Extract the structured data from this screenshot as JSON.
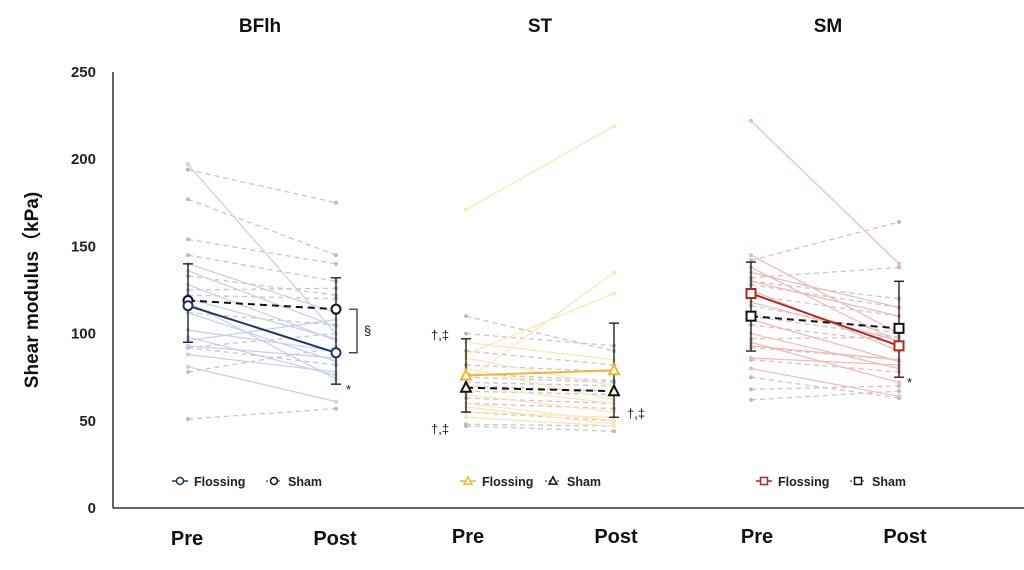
{
  "chart_data": {
    "type": "line",
    "ylabel": "Shear modulus（kPa)",
    "ylim": [
      0,
      250
    ],
    "yticks": [
      0,
      50,
      100,
      150,
      200,
      250
    ],
    "grid": false,
    "xcategories": [
      "Pre",
      "Post"
    ],
    "panels": [
      {
        "title": "BFlh",
        "marker": "circle",
        "flossing_color": "#1f3370",
        "flossing_individual_color": "#c7cfe8",
        "sham_color": "#111111",
        "legend": {
          "flossing": "Flossing",
          "sham": "Sham"
        },
        "series": [
          {
            "name": "Flossing",
            "mean": [
              116,
              89
            ],
            "sd_upper": [
              140,
              101
            ],
            "sd_lower": [
              95,
              71
            ]
          },
          {
            "name": "Sham",
            "mean": [
              119,
              114
            ],
            "sd_upper": [
              139,
              132
            ],
            "sd_lower": [
              99,
              96
            ]
          }
        ],
        "individual_flossing": [
          [
            197,
            100
          ],
          [
            140,
            112
          ],
          [
            136,
            104
          ],
          [
            128,
            96
          ],
          [
            120,
            97
          ],
          [
            112,
            84
          ],
          [
            102,
            90
          ],
          [
            96,
            108
          ],
          [
            93,
            86
          ],
          [
            88,
            78
          ],
          [
            81,
            61
          ],
          [
            98,
            76
          ],
          [
            118,
            74
          ]
        ],
        "individual_sham": [
          [
            194,
            175
          ],
          [
            177,
            145
          ],
          [
            154,
            140
          ],
          [
            145,
            130
          ],
          [
            133,
            122
          ],
          [
            125,
            126
          ],
          [
            122,
            120
          ],
          [
            92,
            100
          ],
          [
            92,
            82
          ],
          [
            78,
            92
          ],
          [
            51,
            57
          ],
          [
            112,
            105
          ]
        ],
        "annotations": [
          {
            "text": "§",
            "between": "Flossing Post vs Sham Post"
          },
          {
            "text": "*",
            "at": "Flossing Post"
          }
        ]
      },
      {
        "title": "ST",
        "marker": "triangle",
        "flossing_color": "#f2b630",
        "flossing_individual_color": "#fbe6b6",
        "sham_color": "#111111",
        "legend": {
          "flossing": "Flossing",
          "sham": "Sham"
        },
        "series": [
          {
            "name": "Flossing",
            "mean": [
              76,
              79
            ],
            "sd_upper": [
              97,
              106
            ],
            "sd_lower": [
              55,
              52
            ]
          },
          {
            "name": "Sham",
            "mean": [
              69,
              67
            ],
            "sd_upper": [
              97,
              106
            ],
            "sd_lower": [
              55,
              52
            ]
          }
        ],
        "individual_flossing": [
          [
            171,
            219
          ],
          [
            73,
            135
          ],
          [
            88,
            123
          ],
          [
            86,
            70
          ],
          [
            80,
            62
          ],
          [
            70,
            60
          ],
          [
            65,
            55
          ],
          [
            60,
            50
          ],
          [
            58,
            48
          ],
          [
            55,
            52
          ],
          [
            52,
            47
          ],
          [
            95,
            85
          ]
        ],
        "individual_sham": [
          [
            110,
            90
          ],
          [
            100,
            93
          ],
          [
            90,
            82
          ],
          [
            82,
            78
          ],
          [
            77,
            73
          ],
          [
            75,
            72
          ],
          [
            72,
            70
          ],
          [
            70,
            67
          ],
          [
            67,
            65
          ],
          [
            63,
            60
          ],
          [
            60,
            57
          ],
          [
            55,
            50
          ],
          [
            48,
            47
          ],
          [
            47,
            44
          ]
        ],
        "annotations": [
          {
            "text": "†,‡",
            "at": "Pre upper"
          },
          {
            "text": "†,‡",
            "at": "Pre lower"
          },
          {
            "text": "†,‡",
            "at": "Post lower"
          }
        ]
      },
      {
        "title": "SM",
        "marker": "square",
        "flossing_color": "#b8231f",
        "flossing_individual_color": "#f1b8b6",
        "sham_color": "#111111",
        "legend": {
          "flossing": "Flossing",
          "sham": "Sham"
        },
        "series": [
          {
            "name": "Flossing",
            "mean": [
              123,
              93
            ],
            "sd_upper": [
              141,
              130
            ],
            "sd_lower": [
              90,
              75
            ]
          },
          {
            "name": "Sham",
            "mean": [
              110,
              103
            ],
            "sd_upper": [
              141,
              130
            ],
            "sd_lower": [
              90,
              75
            ]
          }
        ],
        "individual_flossing": [
          [
            222,
            140
          ],
          [
            145,
            100
          ],
          [
            138,
            95
          ],
          [
            135,
            115
          ],
          [
            130,
            110
          ],
          [
            125,
            90
          ],
          [
            118,
            96
          ],
          [
            108,
            84
          ],
          [
            100,
            80
          ],
          [
            93,
            85
          ],
          [
            86,
            82
          ],
          [
            80,
            64
          ],
          [
            95,
            72
          ]
        ],
        "individual_sham": [
          [
            142,
            164
          ],
          [
            132,
            138
          ],
          [
            130,
            120
          ],
          [
            128,
            115
          ],
          [
            122,
            110
          ],
          [
            116,
            100
          ],
          [
            110,
            98
          ],
          [
            105,
            95
          ],
          [
            97,
            98
          ],
          [
            92,
            85
          ],
          [
            85,
            78
          ],
          [
            75,
            63
          ],
          [
            68,
            70
          ],
          [
            62,
            67
          ]
        ],
        "annotations": [
          {
            "text": "*",
            "at": "Flossing Post"
          }
        ]
      }
    ]
  }
}
